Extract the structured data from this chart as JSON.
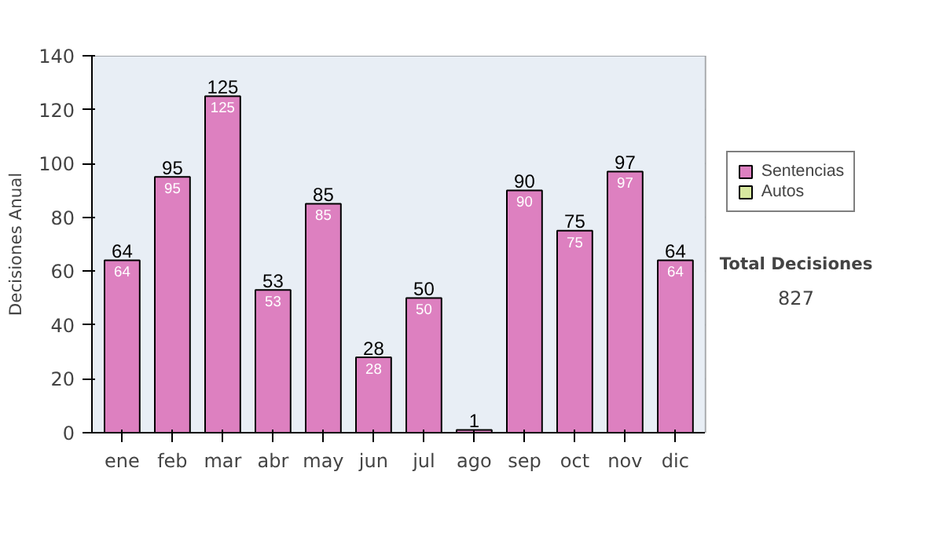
{
  "chart_data": {
    "type": "bar",
    "ylabel": "Decisiones Anual",
    "categories": [
      "ene",
      "feb",
      "mar",
      "abr",
      "may",
      "jun",
      "jul",
      "ago",
      "sep",
      "oct",
      "nov",
      "dic"
    ],
    "series": [
      {
        "name": "Sentencias",
        "color": "#dd80c0",
        "values": [
          64,
          95,
          125,
          53,
          85,
          28,
          50,
          1,
          90,
          75,
          97,
          64
        ],
        "value_labels": [
          "64",
          "95",
          "125",
          "53",
          "85",
          "28",
          "50",
          null,
          "90",
          "75",
          "97",
          "64"
        ]
      },
      {
        "name": "Autos",
        "color": "#d8e8a0",
        "values": [
          null,
          null,
          null,
          null,
          null,
          null,
          null,
          null,
          null,
          null,
          null,
          null
        ]
      }
    ],
    "stacked": true,
    "totals": [
      "64",
      "95",
      "125",
      "53",
      "85",
      "28",
      "50",
      "1",
      "90",
      "75",
      "97",
      "64"
    ],
    "ylim": [
      0,
      140
    ],
    "yticks": [
      0,
      20,
      40,
      60,
      80,
      100,
      120,
      140
    ],
    "grid": "y",
    "legend": "right",
    "annotations": [
      "Total Decisiones",
      "827"
    ]
  }
}
